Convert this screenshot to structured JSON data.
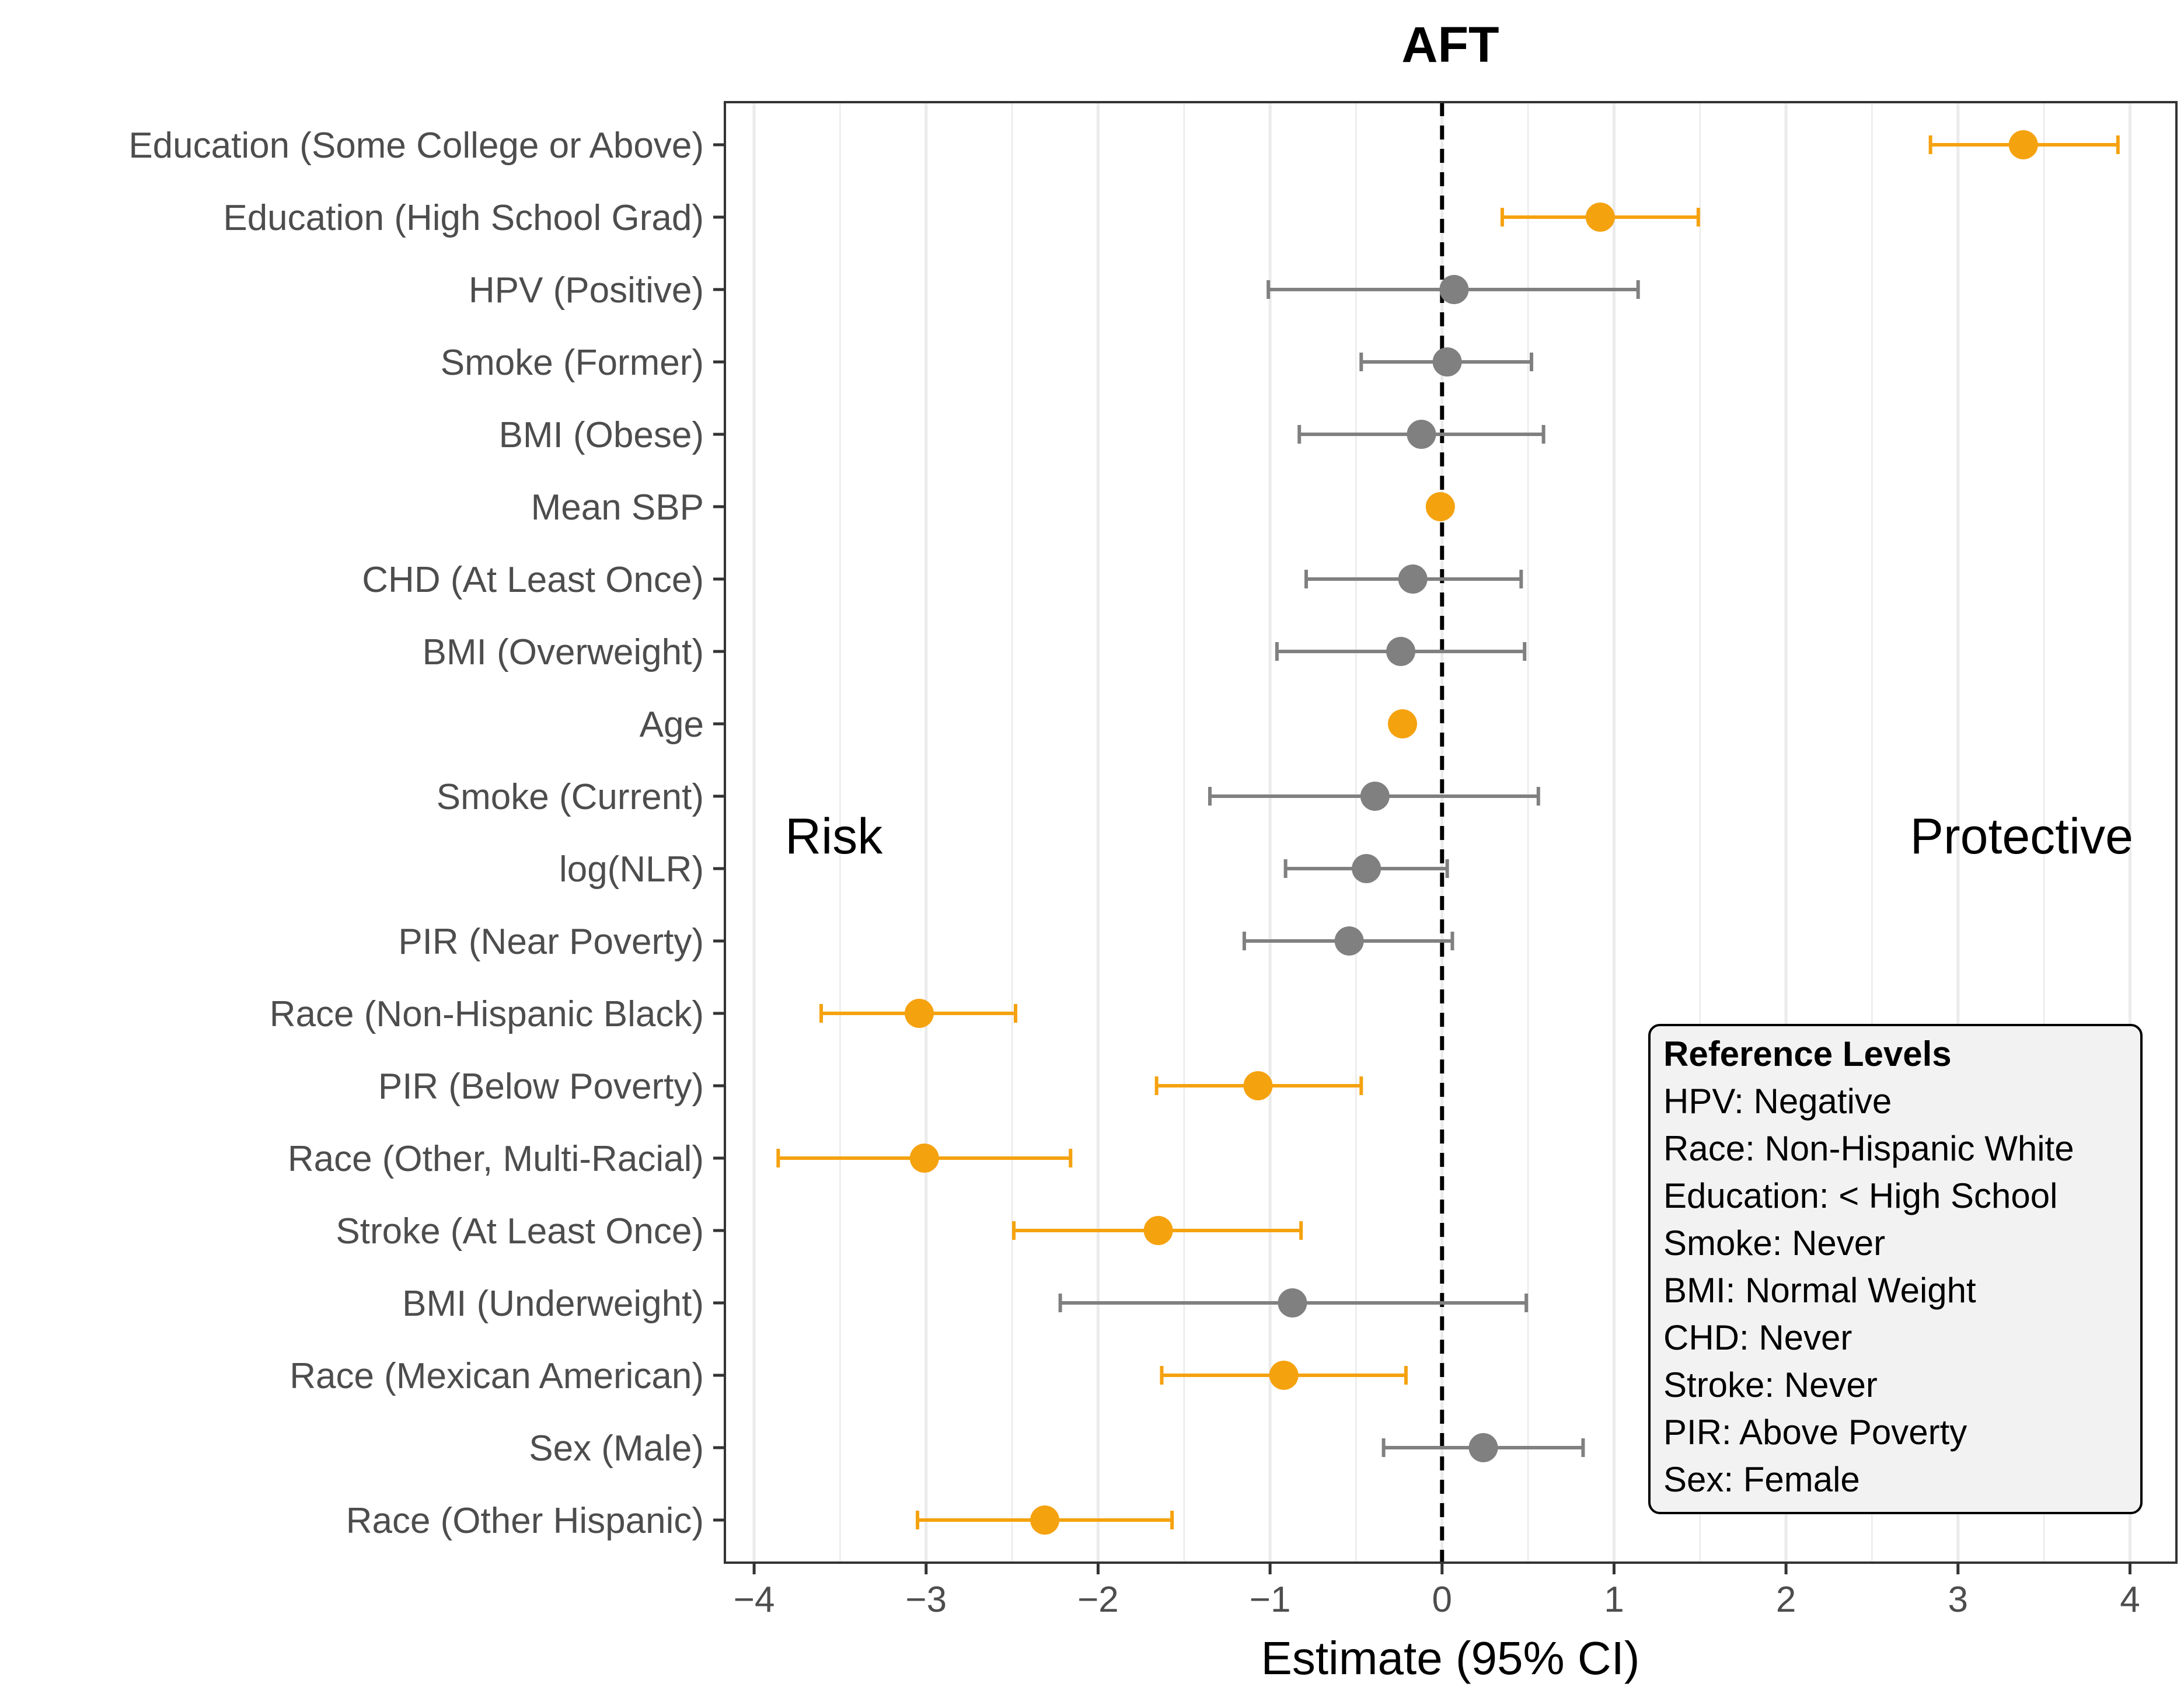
{
  "chart_data": {
    "type": "forest",
    "title": "AFT",
    "xlabel": "Estimate (95% CI)",
    "ylabel": "",
    "xlim": [
      -4.17,
      4.27
    ],
    "xticks": [
      -4,
      -3,
      -2,
      -1,
      0,
      1,
      2,
      3,
      4
    ],
    "xtick_labels": [
      "−4",
      "−3",
      "−2",
      "−1",
      "0",
      "1",
      "2",
      "3",
      "4"
    ],
    "reference_line": 0,
    "colors": {
      "significant": "#f5a20f",
      "nonsignificant": "#808080"
    },
    "rows": [
      {
        "label": "Education (Some College or Above)",
        "estimate": 3.38,
        "lower": 2.84,
        "upper": 3.93,
        "significant": true
      },
      {
        "label": "Education (High School Grad)",
        "estimate": 0.92,
        "lower": 0.35,
        "upper": 1.49,
        "significant": true
      },
      {
        "label": "HPV (Positive)",
        "estimate": 0.07,
        "lower": -1.01,
        "upper": 1.14,
        "significant": false
      },
      {
        "label": "Smoke (Former)",
        "estimate": 0.03,
        "lower": -0.47,
        "upper": 0.52,
        "significant": false
      },
      {
        "label": "BMI (Obese)",
        "estimate": -0.12,
        "lower": -0.83,
        "upper": 0.59,
        "significant": false
      },
      {
        "label": "Mean SBP",
        "estimate": -0.01,
        "lower": -0.01,
        "upper": -0.01,
        "significant": true
      },
      {
        "label": "CHD (At Least Once)",
        "estimate": -0.17,
        "lower": -0.79,
        "upper": 0.46,
        "significant": false
      },
      {
        "label": "BMI (Overweight)",
        "estimate": -0.24,
        "lower": -0.96,
        "upper": 0.48,
        "significant": false
      },
      {
        "label": "Age",
        "estimate": -0.23,
        "lower": -0.23,
        "upper": -0.23,
        "significant": true
      },
      {
        "label": "Smoke (Current)",
        "estimate": -0.39,
        "lower": -1.35,
        "upper": 0.56,
        "significant": false
      },
      {
        "label": "log(NLR)",
        "estimate": -0.44,
        "lower": -0.91,
        "upper": 0.03,
        "significant": false
      },
      {
        "label": "PIR (Near Poverty)",
        "estimate": -0.54,
        "lower": -1.15,
        "upper": 0.06,
        "significant": false
      },
      {
        "label": "Race (Non-Hispanic Black)",
        "estimate": -3.04,
        "lower": -3.61,
        "upper": -2.48,
        "significant": true
      },
      {
        "label": "PIR (Below Poverty)",
        "estimate": -1.07,
        "lower": -1.66,
        "upper": -0.47,
        "significant": true
      },
      {
        "label": "Race (Other, Multi-Racial)",
        "estimate": -3.01,
        "lower": -3.86,
        "upper": -2.16,
        "significant": true
      },
      {
        "label": "Stroke (At Least Once)",
        "estimate": -1.65,
        "lower": -2.49,
        "upper": -0.82,
        "significant": true
      },
      {
        "label": "BMI (Underweight)",
        "estimate": -0.87,
        "lower": -2.22,
        "upper": 0.49,
        "significant": false
      },
      {
        "label": "Race (Mexican American)",
        "estimate": -0.92,
        "lower": -1.63,
        "upper": -0.21,
        "significant": true
      },
      {
        "label": "Sex (Male)",
        "estimate": 0.24,
        "lower": -0.34,
        "upper": 0.82,
        "significant": false
      },
      {
        "label": "Race (Other Hispanic)",
        "estimate": -2.31,
        "lower": -3.05,
        "upper": -1.57,
        "significant": true
      }
    ],
    "annotations": {
      "left": "Risk",
      "right": "Protective"
    },
    "legend": {
      "position": "bottom-right",
      "title": "Reference Levels",
      "items": [
        "HPV: Negative",
        "Race: Non-Hispanic White",
        "Education: < High School",
        "Smoke: Never",
        "BMI: Normal Weight",
        "CHD: Never",
        "Stroke: Never",
        "PIR: Above Poverty",
        "Sex: Female"
      ]
    }
  }
}
